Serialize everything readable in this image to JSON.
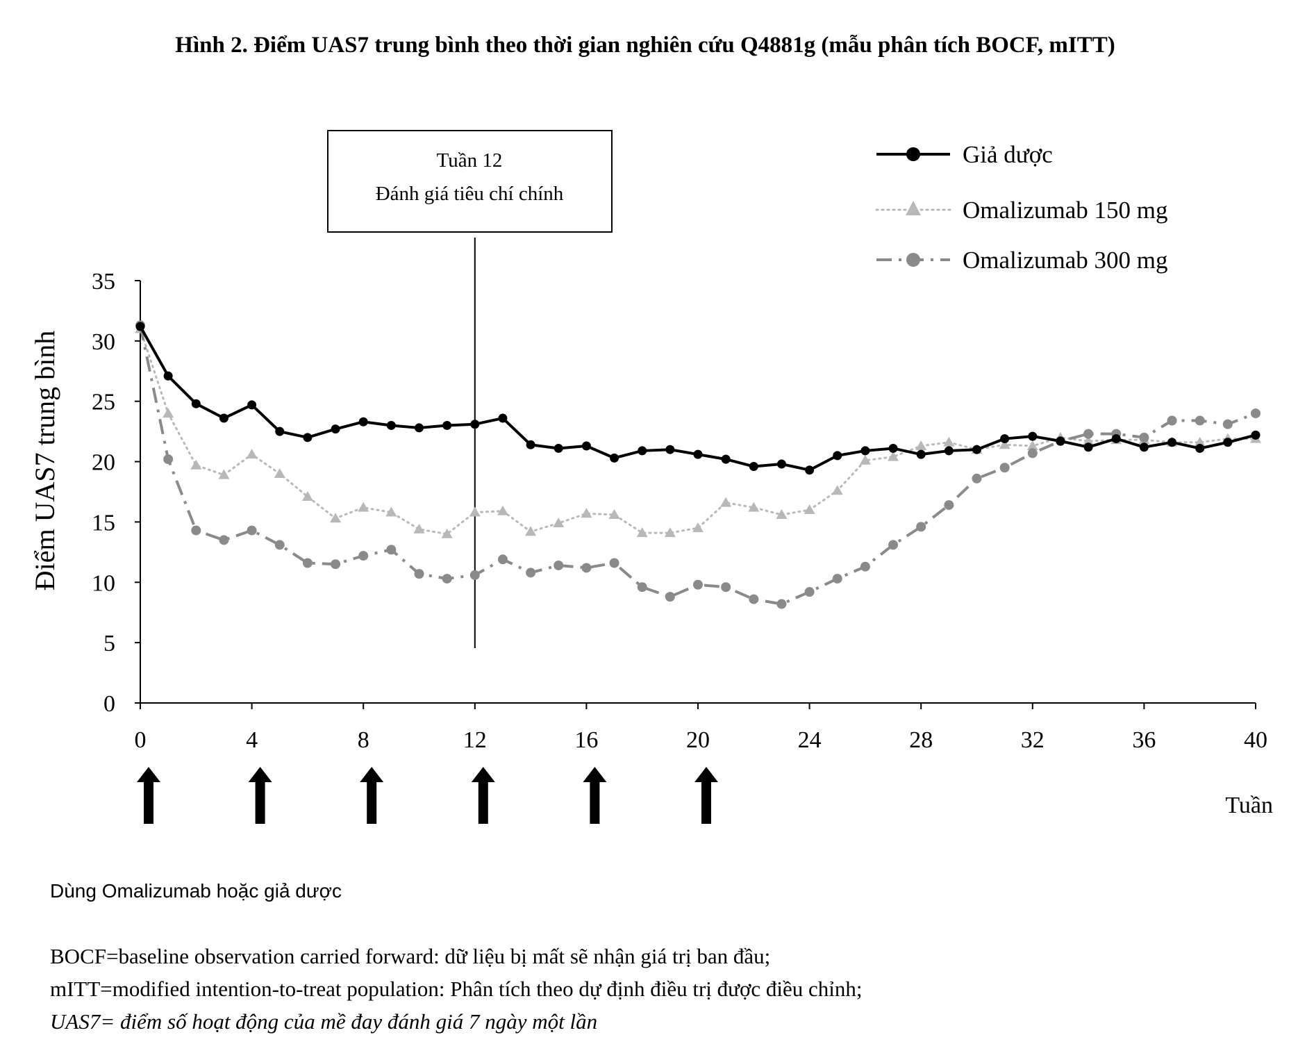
{
  "figure": {
    "title": "Hình 2. Điểm UAS7 trung bình theo thời gian nghiên cứu Q4881g (mẫu phân tích BOCF, mITT)",
    "dosing_note": "Dùng Omalizumab hoặc giả dược",
    "footnotes": [
      "BOCF=baseline observation carried forward: dữ liệu bị mất sẽ nhận giá trị ban đầu;",
      "mITT=modified intention-to-treat population: Phân tích theo dự định điều trị được điều chỉnh;",
      "UAS7= điểm số hoạt động của mề đay đánh giá 7 ngày một lần"
    ],
    "colors": {
      "placebo": "#000000",
      "om150": "#b8b8b8",
      "om300": "#8a8a8a"
    }
  },
  "chart_data": {
    "type": "line",
    "ylabel": "Điểm UAS7 trung bình",
    "xlabel": "Tuần",
    "xlim": [
      0,
      40
    ],
    "ylim": [
      0,
      35
    ],
    "xticks": [
      0,
      4,
      8,
      12,
      16,
      20,
      24,
      28,
      32,
      36,
      40
    ],
    "yticks": [
      0,
      5,
      10,
      15,
      20,
      25,
      30,
      35
    ],
    "grid": false,
    "legend_position": "top-right",
    "x": [
      0,
      1,
      2,
      3,
      4,
      5,
      6,
      7,
      8,
      9,
      10,
      11,
      12,
      13,
      14,
      15,
      16,
      17,
      18,
      19,
      20,
      21,
      22,
      23,
      24,
      25,
      26,
      27,
      28,
      29,
      30,
      31,
      32,
      33,
      34,
      35,
      36,
      37,
      38,
      39,
      40
    ],
    "series": [
      {
        "name": "Giả dược",
        "style": "solid-circle",
        "values": [
          31.2,
          27.1,
          24.8,
          23.6,
          24.7,
          22.5,
          22.0,
          22.7,
          23.3,
          23.0,
          22.8,
          23.0,
          23.1,
          23.6,
          21.4,
          21.1,
          21.3,
          20.3,
          20.9,
          21.0,
          20.6,
          20.2,
          19.6,
          19.8,
          19.3,
          20.5,
          20.9,
          21.1,
          20.6,
          20.9,
          21.0,
          21.9,
          22.1,
          21.7,
          21.2,
          21.9,
          21.2,
          21.6,
          21.1,
          21.6,
          22.2
        ]
      },
      {
        "name": "Omalizumab 150 mg",
        "style": "dotted-triangle",
        "values": [
          31.0,
          24.0,
          19.7,
          18.9,
          20.6,
          19.0,
          17.1,
          15.3,
          16.2,
          15.8,
          14.4,
          14.0,
          15.8,
          15.9,
          14.2,
          14.9,
          15.7,
          15.6,
          14.1,
          14.1,
          14.5,
          16.6,
          16.2,
          15.6,
          16.0,
          17.6,
          20.1,
          20.4,
          21.3,
          21.6,
          21.0,
          21.4,
          21.3,
          22.0,
          21.7,
          21.8,
          21.8,
          21.6,
          21.6,
          21.9,
          21.9
        ]
      },
      {
        "name": "Omalizumab 300 mg",
        "style": "dashdot-circle",
        "values": [
          31.3,
          20.2,
          14.3,
          13.5,
          14.3,
          13.1,
          11.6,
          11.5,
          12.2,
          12.7,
          10.7,
          10.3,
          10.6,
          11.9,
          10.8,
          11.4,
          11.2,
          11.6,
          9.6,
          8.8,
          9.8,
          9.6,
          8.6,
          8.2,
          9.2,
          10.3,
          11.3,
          13.1,
          14.6,
          16.4,
          18.6,
          19.5,
          20.7,
          21.7,
          22.3,
          22.3,
          22.0,
          23.4,
          23.4,
          23.1,
          24.0
        ]
      }
    ],
    "annotations": [
      {
        "x": 12,
        "lines": [
          "Tuần 12",
          "Đánh giá tiêu chí chính"
        ]
      }
    ],
    "dosing_weeks": [
      0,
      4,
      8,
      12,
      16,
      20
    ]
  }
}
